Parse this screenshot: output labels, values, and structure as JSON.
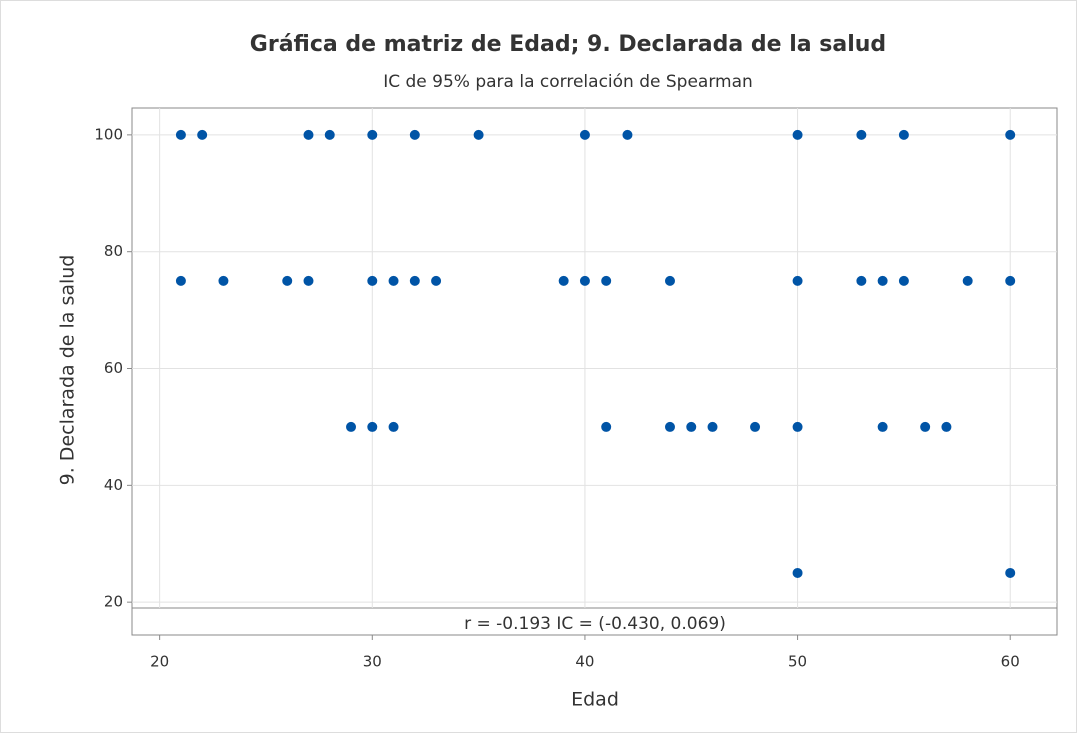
{
  "chart_data": {
    "type": "scatter",
    "title": "Gráfica de matriz de Edad; 9. Declarada de la salud",
    "subtitle": "IC de 95% para la correlación de Spearman",
    "x_label": "Edad",
    "y_label": "9. Declarada de la salud",
    "annotation": "r = -0.193  IC = (-0.430, 0.069)",
    "color": "#0054a6",
    "grid": true,
    "xlim": [
      18.7,
      62.2
    ],
    "ylim": [
      19,
      104.6
    ],
    "xticks": [
      20,
      30,
      40,
      50,
      60
    ],
    "yticks": [
      20,
      40,
      60,
      80,
      100
    ],
    "x": [
      21,
      22,
      27,
      28,
      30,
      32,
      35,
      40,
      42,
      50,
      53,
      55,
      60,
      21,
      23,
      26,
      27,
      30,
      31,
      32,
      33,
      39,
      40,
      41,
      44,
      50,
      53,
      54,
      55,
      58,
      60,
      29,
      30,
      31,
      41,
      44,
      45,
      46,
      48,
      50,
      54,
      56,
      57,
      50,
      60
    ],
    "values": [
      100,
      100,
      100,
      100,
      100,
      100,
      100,
      100,
      100,
      100,
      100,
      100,
      100,
      75,
      75,
      75,
      75,
      75,
      75,
      75,
      75,
      75,
      75,
      75,
      75,
      75,
      75,
      75,
      75,
      75,
      75,
      50,
      50,
      50,
      50,
      50,
      50,
      50,
      50,
      50,
      50,
      50,
      50,
      25,
      25
    ]
  }
}
